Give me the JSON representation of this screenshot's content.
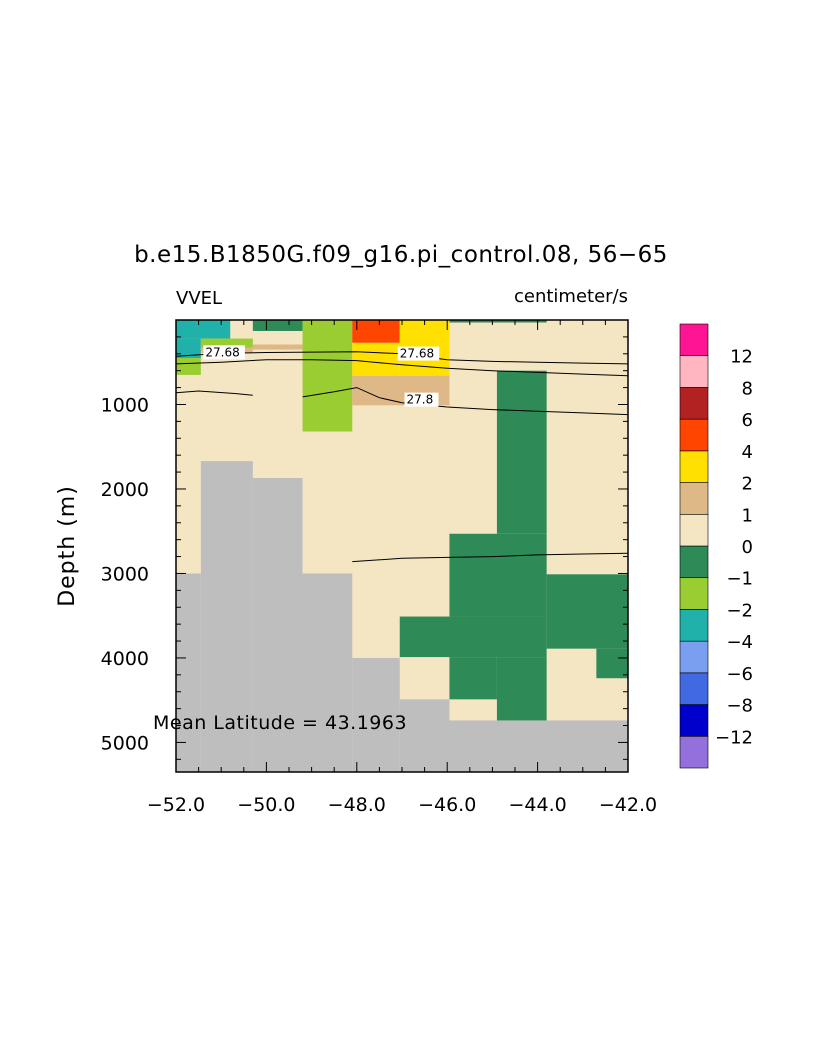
{
  "chart_data": {
    "type": "heatmap",
    "title": "b.e15.B1850G.f09_g16.pi_control.08, 56−65",
    "left_label": "VVEL",
    "right_label": "centimeter/s",
    "ylabel": "Depth (m)",
    "annotation": "Mean Latitude = 43.1963",
    "xlim": [
      -52.0,
      -42.0
    ],
    "ylim": [
      0,
      5350
    ],
    "y_inverted": true,
    "x_ticks": [
      {
        "value": -52,
        "label": "−52.0"
      },
      {
        "value": -50,
        "label": "−50.0"
      },
      {
        "value": -48,
        "label": "−48.0"
      },
      {
        "value": -46,
        "label": "−46.0"
      },
      {
        "value": -44,
        "label": "−44.0"
      },
      {
        "value": -42,
        "label": "−42.0"
      }
    ],
    "y_ticks": [
      {
        "value": 1000,
        "label": "1000"
      },
      {
        "value": 2000,
        "label": "2000"
      },
      {
        "value": 3000,
        "label": "3000"
      },
      {
        "value": 4000,
        "label": "4000"
      },
      {
        "value": 5000,
        "label": "5000"
      }
    ],
    "background_color": "#f5e6c3",
    "land_color": "#bebebe",
    "colorbar": {
      "colors": [
        "#9370db",
        "#0000cd",
        "#4169e1",
        "#7b9ff0",
        "#20b2aa",
        "#9acd32",
        "#2e8b57",
        "#f5e6c3",
        "#deb887",
        "#ffe000",
        "#ff4500",
        "#b22222",
        "#ffb6c1",
        "#ff1493"
      ],
      "labels": [
        "−12",
        "−8",
        "−6",
        "−4",
        "−2",
        "−1",
        "0",
        "1",
        "2",
        "4",
        "6",
        "8",
        "12"
      ]
    },
    "cells": [
      {
        "x0": -52.0,
        "x1": -50.8,
        "y0": 0,
        "y1": 220,
        "color": "#20b2aa"
      },
      {
        "x0": -52.0,
        "x1": -51.45,
        "y0": 220,
        "y1": 450,
        "color": "#20b2aa"
      },
      {
        "x0": -51.45,
        "x1": -50.3,
        "y0": 220,
        "y1": 330,
        "color": "#9acd32"
      },
      {
        "x0": -52.0,
        "x1": -51.45,
        "y0": 450,
        "y1": 650,
        "color": "#9acd32"
      },
      {
        "x0": -51.45,
        "x1": -50.3,
        "y0": 330,
        "y1": 390,
        "color": "#deb887"
      },
      {
        "x0": -50.3,
        "x1": -49.2,
        "y0": 0,
        "y1": 130,
        "color": "#2e8b57"
      },
      {
        "x0": -50.3,
        "x1": -49.2,
        "y0": 290,
        "y1": 350,
        "color": "#deb887"
      },
      {
        "x0": -49.2,
        "x1": -48.1,
        "y0": 0,
        "y1": 1320,
        "color": "#9acd32"
      },
      {
        "x0": -48.1,
        "x1": -47.05,
        "y0": 0,
        "y1": 270,
        "color": "#ff4500"
      },
      {
        "x0": -48.1,
        "x1": -47.05,
        "y0": 270,
        "y1": 660,
        "color": "#ffe000"
      },
      {
        "x0": -47.05,
        "x1": -45.95,
        "y0": 0,
        "y1": 660,
        "color": "#ffe000"
      },
      {
        "x0": -48.1,
        "x1": -45.95,
        "y0": 660,
        "y1": 1010,
        "color": "#deb887"
      },
      {
        "x0": -45.95,
        "x1": -43.8,
        "y0": 0,
        "y1": 30,
        "color": "#2e8b57"
      },
      {
        "x0": -44.9,
        "x1": -43.8,
        "y0": 600,
        "y1": 2530,
        "color": "#2e8b57"
      },
      {
        "x0": -45.95,
        "x1": -43.8,
        "y0": 2530,
        "y1": 3510,
        "color": "#2e8b57"
      },
      {
        "x0": -43.8,
        "x1": -42.0,
        "y0": 3010,
        "y1": 3890,
        "color": "#2e8b57"
      },
      {
        "x0": -47.05,
        "x1": -43.8,
        "y0": 3510,
        "y1": 3990,
        "color": "#2e8b57"
      },
      {
        "x0": -45.95,
        "x1": -44.9,
        "y0": 3990,
        "y1": 4490,
        "color": "#2e8b57"
      },
      {
        "x0": -44.9,
        "x1": -43.8,
        "y0": 3990,
        "y1": 4740,
        "color": "#2e8b57"
      },
      {
        "x0": -42.7,
        "x1": -42.0,
        "y0": 3890,
        "y1": 4240,
        "color": "#2e8b57"
      }
    ],
    "land": [
      {
        "x0": -52.0,
        "x1": -51.45,
        "y0": 3000,
        "y1": 5350
      },
      {
        "x0": -51.45,
        "x1": -50.3,
        "y0": 1670,
        "y1": 5350
      },
      {
        "x0": -50.3,
        "x1": -49.2,
        "y0": 1870,
        "y1": 5350
      },
      {
        "x0": -49.2,
        "x1": -48.1,
        "y0": 3000,
        "y1": 5350
      },
      {
        "x0": -48.1,
        "x1": -47.05,
        "y0": 4000,
        "y1": 5350
      },
      {
        "x0": -47.05,
        "x1": -45.95,
        "y0": 4490,
        "y1": 5350
      },
      {
        "x0": -45.95,
        "x1": -42.0,
        "y0": 4740,
        "y1": 5350
      }
    ],
    "contours": [
      {
        "label": "27.68",
        "label_at": [
          -51.35,
          430
        ],
        "points": [
          [
            -52.0,
            430
          ],
          [
            -51.0,
            395
          ],
          [
            -50.0,
            385
          ],
          [
            -49.0,
            380
          ],
          [
            -48.0,
            375
          ],
          [
            -47.0,
            400
          ],
          [
            -46.0,
            470
          ],
          [
            -45.0,
            490
          ],
          [
            -44.0,
            500
          ],
          [
            -43.0,
            510
          ],
          [
            -42.0,
            520
          ]
        ]
      },
      {
        "label": "27.68",
        "label_at": [
          -47.05,
          445
        ],
        "points": [
          [
            -52.0,
            520
          ],
          [
            -51.0,
            500
          ],
          [
            -50.0,
            470
          ],
          [
            -49.0,
            470
          ],
          [
            -48.0,
            480
          ],
          [
            -47.0,
            530
          ],
          [
            -46.0,
            570
          ],
          [
            -45.0,
            600
          ],
          [
            -44.0,
            620
          ],
          [
            -43.0,
            640
          ],
          [
            -42.0,
            660
          ]
        ]
      },
      {
        "label": "",
        "label_at": null,
        "points": [
          [
            -52.0,
            860
          ],
          [
            -51.5,
            840
          ],
          [
            -50.7,
            870
          ],
          [
            -50.3,
            890
          ]
        ]
      },
      {
        "label": "27.8",
        "label_at": [
          -46.9,
          990
        ],
        "points": [
          [
            -49.2,
            910
          ],
          [
            -48.5,
            850
          ],
          [
            -48.0,
            800
          ],
          [
            -47.5,
            920
          ],
          [
            -47.0,
            980
          ],
          [
            -46.0,
            1030
          ],
          [
            -45.0,
            1060
          ],
          [
            -44.0,
            1080
          ],
          [
            -43.0,
            1100
          ],
          [
            -42.0,
            1120
          ]
        ]
      },
      {
        "label": "",
        "label_at": null,
        "points": [
          [
            -48.1,
            2860
          ],
          [
            -47.0,
            2820
          ],
          [
            -46.0,
            2810
          ],
          [
            -45.0,
            2800
          ],
          [
            -44.0,
            2780
          ],
          [
            -43.0,
            2770
          ],
          [
            -42.0,
            2760
          ]
        ]
      }
    ]
  }
}
